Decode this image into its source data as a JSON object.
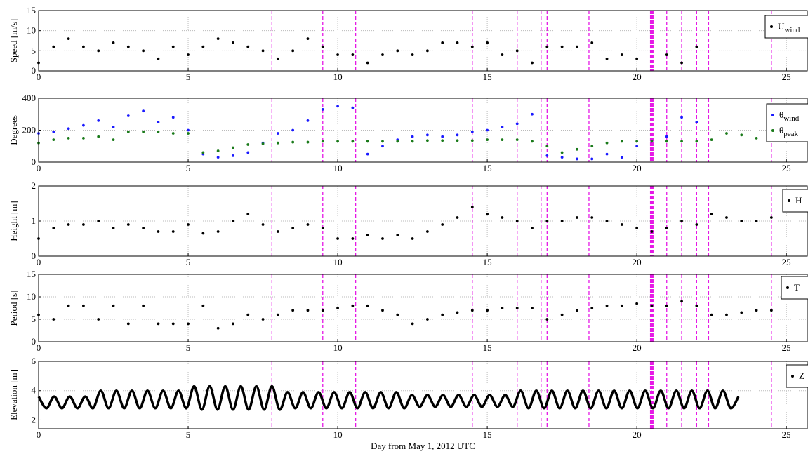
{
  "chart_data": [
    {
      "type": "scatter",
      "ylabel": "Speed [m/s]",
      "xlim": [
        0,
        25.7
      ],
      "xticks": [
        0,
        5,
        10,
        15,
        20,
        25
      ],
      "ylim": [
        0,
        15
      ],
      "yticks": [
        0,
        5,
        10,
        15
      ],
      "grid": true,
      "vlines": [
        7.8,
        9.5,
        10.6,
        14.5,
        16.0,
        16.8,
        17.0,
        18.4,
        21.0,
        21.5,
        22.0,
        22.4,
        24.5
      ],
      "vlines_bold": [
        20.5
      ],
      "vline_color": "#e619e6",
      "series": [
        {
          "name": "U",
          "subscript": "wind",
          "color": "#000000",
          "x": [
            0,
            0.5,
            1,
            1.5,
            2,
            2.5,
            3,
            3.5,
            4,
            4.5,
            5,
            5.5,
            6,
            6.5,
            7,
            7.5,
            8,
            8.5,
            9,
            9.5,
            10,
            10.5,
            11,
            11.5,
            12,
            12.5,
            13,
            13.5,
            14,
            14.5,
            15,
            15.5,
            16,
            16.5,
            17,
            17.5,
            18,
            18.5,
            19,
            19.5,
            20,
            20.5,
            21,
            21.5,
            22
          ],
          "values": [
            2,
            6,
            8,
            6,
            5,
            7,
            6,
            5,
            3,
            6,
            4,
            6,
            8,
            7,
            6,
            5,
            3,
            5,
            8,
            6,
            4,
            4,
            2,
            4,
            5,
            4,
            5,
            7,
            7,
            6,
            7,
            4,
            5,
            2,
            6,
            6,
            6,
            7,
            3,
            4,
            3,
            null,
            4,
            2,
            6
          ]
        }
      ]
    },
    {
      "type": "scatter",
      "ylabel": "Degrees",
      "xlim": [
        0,
        25.7
      ],
      "xticks": [
        0,
        5,
        10,
        15,
        20,
        25
      ],
      "ylim": [
        0,
        400
      ],
      "yticks": [
        0,
        200,
        400
      ],
      "grid": true,
      "vlines": [
        7.8,
        9.5,
        10.6,
        14.5,
        16.0,
        16.8,
        17.0,
        18.4,
        21.0,
        21.5,
        22.0,
        22.4,
        24.5
      ],
      "vlines_bold": [
        20.5
      ],
      "vline_color": "#e619e6",
      "series": [
        {
          "name": "θ",
          "subscript": "wind",
          "color": "#1a1aff",
          "x": [
            0,
            0.5,
            1,
            1.5,
            2,
            2.5,
            3,
            3.5,
            4,
            4.5,
            5,
            5.5,
            6,
            6.5,
            7,
            7.5,
            8,
            8.5,
            9,
            9.5,
            10,
            10.5,
            11,
            11.5,
            12,
            12.5,
            13,
            13.5,
            14,
            14.5,
            15,
            15.5,
            16,
            16.5,
            17,
            17.5,
            18,
            18.5,
            19,
            19.5,
            20,
            20.5,
            21,
            21.5,
            22
          ],
          "values": [
            180,
            190,
            210,
            230,
            260,
            220,
            290,
            320,
            250,
            280,
            200,
            50,
            30,
            40,
            60,
            120,
            180,
            200,
            260,
            330,
            350,
            340,
            50,
            100,
            140,
            160,
            170,
            160,
            170,
            190,
            200,
            220,
            240,
            300,
            40,
            30,
            20,
            20,
            50,
            30,
            100,
            130,
            160,
            280,
            250
          ]
        },
        {
          "name": "θ",
          "subscript": "peak",
          "color": "#1a7a1a",
          "x": [
            0,
            0.5,
            1,
            1.5,
            2,
            2.5,
            3,
            3.5,
            4,
            4.5,
            5,
            5.5,
            6,
            6.5,
            7,
            7.5,
            8,
            8.5,
            9,
            9.5,
            10,
            10.5,
            11,
            11.5,
            12,
            12.5,
            13,
            13.5,
            14,
            14.5,
            15,
            15.5,
            16,
            16.5,
            17,
            17.5,
            18,
            18.5,
            19,
            19.5,
            20,
            20.5,
            21,
            21.5,
            22,
            22.5,
            23,
            23.5,
            24,
            24.5,
            25
          ],
          "values": [
            120,
            140,
            150,
            150,
            160,
            140,
            190,
            190,
            190,
            180,
            180,
            60,
            70,
            90,
            110,
            115,
            120,
            125,
            125,
            130,
            130,
            130,
            130,
            130,
            130,
            130,
            135,
            135,
            135,
            135,
            140,
            140,
            140,
            130,
            100,
            60,
            80,
            100,
            120,
            130,
            130,
            130,
            130,
            130,
            130,
            140,
            180,
            170,
            150,
            140,
            140
          ]
        }
      ]
    },
    {
      "type": "scatter",
      "ylabel": "Height [m]",
      "xlim": [
        0,
        25.7
      ],
      "xticks": [
        0,
        5,
        10,
        15,
        20,
        25
      ],
      "ylim": [
        0,
        2
      ],
      "yticks": [
        0,
        1,
        2
      ],
      "grid": true,
      "vlines": [
        7.8,
        9.5,
        10.6,
        14.5,
        16.0,
        16.8,
        17.0,
        18.4,
        21.0,
        21.5,
        22.0,
        22.4,
        24.5
      ],
      "vlines_bold": [
        20.5
      ],
      "vline_color": "#e619e6",
      "series": [
        {
          "name": "H",
          "color": "#000000",
          "x": [
            0,
            0.5,
            1,
            1.5,
            2,
            2.5,
            3,
            3.5,
            4,
            4.5,
            5,
            5.5,
            6,
            6.5,
            7,
            7.5,
            8,
            8.5,
            9,
            9.5,
            10,
            10.5,
            11,
            11.5,
            12,
            12.5,
            13,
            13.5,
            14,
            14.5,
            15,
            15.5,
            16,
            16.5,
            17,
            17.5,
            18,
            18.5,
            19,
            19.5,
            20,
            20.5,
            21,
            21.5,
            22,
            22.5,
            23,
            23.5,
            24,
            24.5,
            25
          ],
          "values": [
            0.5,
            0.8,
            0.9,
            0.9,
            1.0,
            0.8,
            0.9,
            0.8,
            0.7,
            0.7,
            0.9,
            0.65,
            0.7,
            1.0,
            1.2,
            0.9,
            0.7,
            0.8,
            0.9,
            0.8,
            0.5,
            0.5,
            0.6,
            0.5,
            0.6,
            0.5,
            0.7,
            0.9,
            1.1,
            1.4,
            1.2,
            1.1,
            1.0,
            0.8,
            1.0,
            1.0,
            1.1,
            1.1,
            1.0,
            0.9,
            0.8,
            0.7,
            0.8,
            1.0,
            0.9,
            1.2,
            1.1,
            1.0,
            1.0,
            1.1,
            1.6
          ]
        }
      ]
    },
    {
      "type": "scatter",
      "ylabel": "Period [s]",
      "xlim": [
        0,
        25.7
      ],
      "xticks": [
        0,
        5,
        10,
        15,
        20,
        25
      ],
      "ylim": [
        0,
        15
      ],
      "yticks": [
        0,
        5,
        10,
        15
      ],
      "grid": true,
      "vlines": [
        7.8,
        9.5,
        10.6,
        14.5,
        16.0,
        16.8,
        17.0,
        18.4,
        21.0,
        21.5,
        22.0,
        22.4,
        24.5
      ],
      "vlines_bold": [
        20.5
      ],
      "vline_color": "#e619e6",
      "series": [
        {
          "name": "T",
          "color": "#000000",
          "x": [
            0,
            0.5,
            1,
            1.5,
            2,
            2.5,
            3,
            3.5,
            4,
            4.5,
            5,
            5.5,
            6,
            6.5,
            7,
            7.5,
            8,
            8.5,
            9,
            9.5,
            10,
            10.5,
            11,
            11.5,
            12,
            12.5,
            13,
            13.5,
            14,
            14.5,
            15,
            15.5,
            16,
            16.5,
            17,
            17.5,
            18,
            18.5,
            19,
            19.5,
            20,
            20.5,
            21,
            21.5,
            22,
            22.5,
            23,
            23.5,
            24,
            24.5
          ],
          "values": [
            6,
            5,
            8,
            8,
            5,
            8,
            4,
            8,
            4,
            4,
            4,
            8,
            3,
            4,
            6,
            5,
            6,
            7,
            7,
            7,
            7.5,
            8,
            8,
            7,
            6,
            4,
            5,
            6,
            6.5,
            7,
            7,
            7.5,
            7.5,
            7.5,
            5,
            6,
            7,
            7.5,
            8,
            8,
            8.5,
            8,
            8,
            9,
            8,
            6,
            6,
            6.5,
            7,
            7
          ]
        }
      ]
    },
    {
      "type": "line",
      "ylabel": "Elevation [m]",
      "xlabel": "Day from May 1, 2012 UTC",
      "xlim": [
        0,
        25.7
      ],
      "xticks": [
        0,
        5,
        10,
        15,
        20,
        25
      ],
      "ylim": [
        1.4,
        6
      ],
      "yticks": [
        2,
        4,
        6
      ],
      "grid": true,
      "vlines": [
        7.8,
        9.5,
        10.6,
        14.5,
        16.0,
        16.8,
        17.0,
        18.4,
        21.0,
        21.5,
        22.0,
        22.4,
        24.5
      ],
      "vlines_bold": [
        20.5
      ],
      "vline_color": "#e619e6",
      "series": [
        {
          "name": "Z",
          "color": "#000000",
          "x": [
            0,
            0.26,
            0.52,
            0.78,
            1.04,
            1.3,
            1.56,
            1.82,
            2.08,
            2.34,
            2.6,
            2.86,
            3.12,
            3.38,
            3.64,
            3.9,
            4.16,
            4.42,
            4.68,
            4.94,
            5.2,
            5.46,
            5.72,
            5.98,
            6.24,
            6.5,
            6.76,
            7.02,
            7.28,
            7.54,
            7.8,
            8.06,
            8.32,
            8.58,
            8.84,
            9.1,
            9.36,
            9.62,
            9.88,
            10.14,
            10.4,
            10.66,
            10.92,
            11.18,
            11.44,
            11.7,
            11.96,
            12.22,
            12.48,
            12.74,
            13,
            13.26,
            13.52,
            13.78,
            14.04,
            14.3,
            14.56,
            14.82,
            15.08,
            15.34,
            15.6,
            15.86,
            16.12,
            16.38,
            16.64,
            16.9,
            17.16,
            17.42,
            17.68,
            17.94,
            18.2,
            18.46,
            18.72,
            18.98,
            19.24,
            19.5,
            19.76,
            20.02,
            20.28,
            20.54,
            20.8,
            21.06,
            21.32,
            21.58,
            21.84,
            22.1,
            22.36,
            22.62,
            22.88,
            23.14,
            23.4
          ],
          "values": [
            3.6,
            2.8,
            3.6,
            2.8,
            3.6,
            2.8,
            3.6,
            2.8,
            4.0,
            2.8,
            4.0,
            2.8,
            4.0,
            2.8,
            4.0,
            2.8,
            4.0,
            2.8,
            4.0,
            2.8,
            4.3,
            2.7,
            4.3,
            2.7,
            4.3,
            2.7,
            4.3,
            2.7,
            4.3,
            2.7,
            4.3,
            2.7,
            3.9,
            2.8,
            3.9,
            2.8,
            3.9,
            2.8,
            3.9,
            2.8,
            3.9,
            2.8,
            3.9,
            2.8,
            3.9,
            2.8,
            3.9,
            2.8,
            3.7,
            2.9,
            3.7,
            2.9,
            3.7,
            2.9,
            3.7,
            2.9,
            3.7,
            2.9,
            3.7,
            2.9,
            3.7,
            2.9,
            4.0,
            2.8,
            4.0,
            2.8,
            4.0,
            2.8,
            4.0,
            2.8,
            4.0,
            2.8,
            4.0,
            2.8,
            4.0,
            2.8,
            4.0,
            2.8,
            4.0,
            2.8,
            4.0,
            2.8,
            4.0,
            2.8,
            4.0,
            2.8,
            4.0,
            2.8,
            4.0,
            2.8,
            3.6
          ]
        }
      ]
    }
  ]
}
